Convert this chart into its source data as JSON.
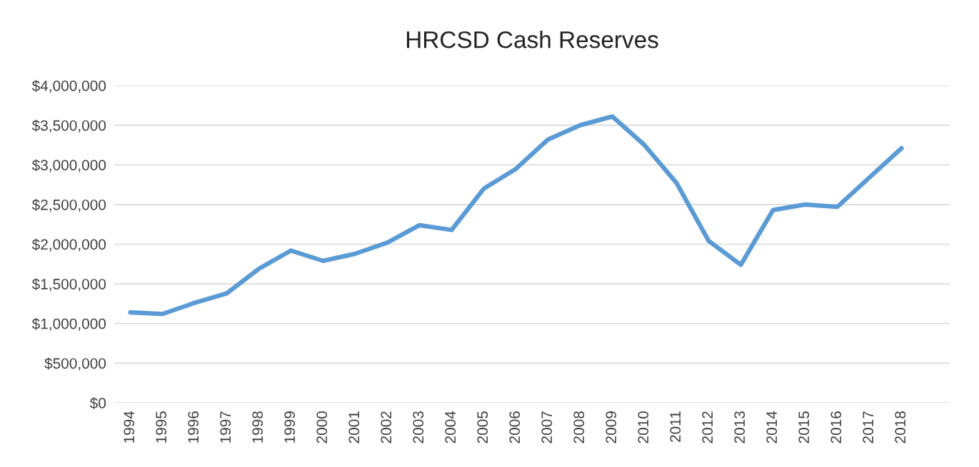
{
  "chart_data": {
    "type": "line",
    "title": "HRCSD Cash Reserves",
    "categories": [
      "1994",
      "1995",
      "1996",
      "1997",
      "1998",
      "1999",
      "2000",
      "2001",
      "2002",
      "2003",
      "2004",
      "2005",
      "2006",
      "2007",
      "2008",
      "2009",
      "2010",
      "2011",
      "2012",
      "2013",
      "2014",
      "2015",
      "2016",
      "2017",
      "2018",
      null
    ],
    "series": [
      {
        "color": "#5b9bd5",
        "values": [
          1140000,
          1120000,
          1260000,
          1380000,
          1690000,
          1920000,
          1790000,
          1880000,
          2020000,
          2240000,
          2180000,
          2700000,
          2950000,
          3320000,
          3500000,
          3610000,
          3250000,
          2770000,
          2040000,
          1740000,
          2430000,
          2500000,
          2470000,
          2840000,
          3210000,
          null
        ]
      }
    ],
    "ylim": [
      0,
      4000000
    ],
    "yticks": [
      {
        "value": 0,
        "label": "$0"
      },
      {
        "value": 500000,
        "label": "$500,000"
      },
      {
        "value": 1000000,
        "label": "$1,000,000"
      },
      {
        "value": 1500000,
        "label": "$1,500,000"
      },
      {
        "value": 2000000,
        "label": "$2,000,000"
      },
      {
        "value": 2500000,
        "label": "$2,500,000"
      },
      {
        "value": 3000000,
        "label": "$3,000,000"
      },
      {
        "value": 3500000,
        "label": "$3,500,000"
      },
      {
        "value": 4000000,
        "label": "$4,000,000"
      }
    ],
    "grid": "y",
    "marker": "none",
    "line_style": "solid"
  }
}
